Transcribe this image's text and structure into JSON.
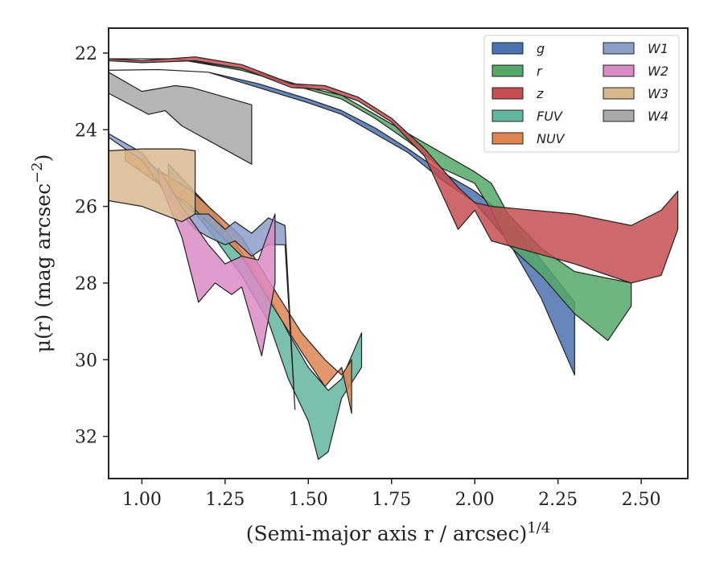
{
  "chart_data": {
    "type": "area",
    "xlabel": "(Semi-major axis r / arcsec)^1/4",
    "ylabel": "μ(r) (mag arcsec^−2)",
    "xlim": [
      0.9,
      2.64
    ],
    "ylim": [
      33.1,
      21.35
    ],
    "y_inverted": true,
    "grid": false,
    "legend_position": "top-right",
    "legend_columns": 2,
    "x_ticks": [
      1.0,
      1.25,
      1.5,
      1.75,
      2.0,
      2.25,
      2.5
    ],
    "x_tick_labels": [
      "1.00",
      "1.25",
      "1.50",
      "1.75",
      "2.00",
      "2.25",
      "2.50"
    ],
    "y_ticks": [
      22,
      24,
      26,
      28,
      30,
      32
    ],
    "y_tick_labels": [
      "22",
      "24",
      "26",
      "28",
      "30",
      "32"
    ],
    "series": [
      {
        "name": "g",
        "color": "#4c72b0",
        "upper": [
          [
            0.9,
            22.45
          ],
          [
            1.05,
            22.43
          ],
          [
            1.2,
            22.5
          ],
          [
            1.35,
            22.8
          ],
          [
            1.5,
            23.2
          ],
          [
            1.6,
            23.5
          ],
          [
            1.7,
            23.95
          ],
          [
            1.8,
            24.5
          ],
          [
            1.9,
            25.1
          ],
          [
            2.0,
            25.6
          ],
          [
            2.1,
            26.3
          ],
          [
            2.2,
            27.4
          ],
          [
            2.3,
            28.5
          ]
        ],
        "lower": [
          [
            0.9,
            22.45
          ],
          [
            1.05,
            22.43
          ],
          [
            1.2,
            22.5
          ],
          [
            1.35,
            22.9
          ],
          [
            1.5,
            23.3
          ],
          [
            1.6,
            23.6
          ],
          [
            1.7,
            24.1
          ],
          [
            1.8,
            24.6
          ],
          [
            1.9,
            25.3
          ],
          [
            2.0,
            25.9
          ],
          [
            2.1,
            26.9
          ],
          [
            2.2,
            28.4
          ],
          [
            2.3,
            30.4
          ]
        ]
      },
      {
        "name": "r",
        "color": "#55a868",
        "upper": [
          [
            0.9,
            22.15
          ],
          [
            1.1,
            22.15
          ],
          [
            1.3,
            22.4
          ],
          [
            1.5,
            22.9
          ],
          [
            1.6,
            23.1
          ],
          [
            1.7,
            23.6
          ],
          [
            1.8,
            24.1
          ],
          [
            1.9,
            24.6
          ],
          [
            2.0,
            25.1
          ],
          [
            2.05,
            25.4
          ],
          [
            2.1,
            26.2
          ],
          [
            2.2,
            27.1
          ],
          [
            2.3,
            27.7
          ],
          [
            2.47,
            28.0
          ]
        ],
        "lower": [
          [
            0.9,
            22.15
          ],
          [
            1.1,
            22.15
          ],
          [
            1.3,
            22.45
          ],
          [
            1.5,
            22.95
          ],
          [
            1.6,
            23.2
          ],
          [
            1.7,
            23.7
          ],
          [
            1.8,
            24.3
          ],
          [
            1.9,
            25.0
          ],
          [
            2.0,
            25.4
          ],
          [
            2.05,
            26.1
          ],
          [
            2.1,
            27.0
          ],
          [
            2.2,
            27.8
          ],
          [
            2.3,
            28.8
          ],
          [
            2.4,
            29.5
          ],
          [
            2.47,
            28.6
          ]
        ]
      },
      {
        "name": "z",
        "color": "#c44e52",
        "upper": [
          [
            0.9,
            22.15
          ],
          [
            1.0,
            22.2
          ],
          [
            1.16,
            22.1
          ],
          [
            1.3,
            22.3
          ],
          [
            1.45,
            22.8
          ],
          [
            1.55,
            22.85
          ],
          [
            1.65,
            23.15
          ],
          [
            1.75,
            23.7
          ],
          [
            1.85,
            24.5
          ],
          [
            1.95,
            25.5
          ],
          [
            2.0,
            25.9
          ],
          [
            2.05,
            26.0
          ],
          [
            2.3,
            26.2
          ],
          [
            2.47,
            26.5
          ],
          [
            2.56,
            26.1
          ],
          [
            2.61,
            25.6
          ]
        ],
        "lower": [
          [
            0.9,
            22.2
          ],
          [
            1.0,
            22.25
          ],
          [
            1.16,
            22.2
          ],
          [
            1.3,
            22.4
          ],
          [
            1.45,
            22.9
          ],
          [
            1.55,
            22.95
          ],
          [
            1.65,
            23.25
          ],
          [
            1.75,
            23.8
          ],
          [
            1.85,
            24.7
          ],
          [
            1.95,
            26.6
          ],
          [
            2.0,
            26.1
          ],
          [
            2.05,
            26.9
          ],
          [
            2.3,
            27.5
          ],
          [
            2.47,
            28.0
          ],
          [
            2.56,
            27.8
          ],
          [
            2.61,
            26.6
          ]
        ]
      },
      {
        "name": "FUV",
        "color": "#64b5a0",
        "upper": [
          [
            1.08,
            24.9
          ],
          [
            1.2,
            26.0
          ],
          [
            1.3,
            27.2
          ],
          [
            1.38,
            28.3
          ],
          [
            1.44,
            29.3
          ],
          [
            1.5,
            30.2
          ],
          [
            1.56,
            30.8
          ],
          [
            1.6,
            30.5
          ],
          [
            1.66,
            29.3
          ]
        ],
        "lower": [
          [
            1.08,
            25.3
          ],
          [
            1.2,
            26.6
          ],
          [
            1.3,
            27.8
          ],
          [
            1.38,
            29.0
          ],
          [
            1.44,
            30.5
          ],
          [
            1.5,
            31.6
          ],
          [
            1.53,
            32.6
          ],
          [
            1.56,
            32.4
          ],
          [
            1.6,
            31.0
          ],
          [
            1.66,
            30.2
          ]
        ]
      },
      {
        "name": "NUV",
        "color": "#dd8452",
        "upper": [
          [
            0.95,
            24.5
          ],
          [
            1.15,
            25.6
          ],
          [
            1.3,
            26.8
          ],
          [
            1.4,
            28.2
          ],
          [
            1.48,
            29.3
          ],
          [
            1.55,
            30.0
          ],
          [
            1.6,
            30.4
          ],
          [
            1.63,
            30.0
          ]
        ],
        "lower": [
          [
            0.95,
            24.8
          ],
          [
            1.15,
            26.0
          ],
          [
            1.3,
            27.3
          ],
          [
            1.4,
            28.7
          ],
          [
            1.48,
            29.8
          ],
          [
            1.55,
            30.7
          ],
          [
            1.6,
            30.2
          ],
          [
            1.63,
            31.4
          ]
        ]
      },
      {
        "name": "W1",
        "color": "#8c9ec8",
        "upper": [
          [
            0.9,
            24.1
          ],
          [
            1.0,
            24.6
          ],
          [
            1.1,
            25.7
          ],
          [
            1.16,
            26.2
          ],
          [
            1.2,
            26.2
          ],
          [
            1.25,
            26.6
          ],
          [
            1.28,
            26.4
          ],
          [
            1.33,
            26.7
          ],
          [
            1.38,
            26.3
          ],
          [
            1.43,
            26.5
          ],
          [
            1.46,
            31.3
          ]
        ],
        "lower": [
          [
            0.9,
            24.2
          ],
          [
            1.0,
            24.8
          ],
          [
            1.1,
            26.0
          ],
          [
            1.16,
            26.6
          ],
          [
            1.2,
            26.8
          ],
          [
            1.25,
            27.0
          ],
          [
            1.28,
            26.9
          ],
          [
            1.33,
            27.3
          ],
          [
            1.38,
            27.0
          ],
          [
            1.43,
            27.0
          ],
          [
            1.46,
            31.3
          ]
        ]
      },
      {
        "name": "W2",
        "color": "#da8bc3",
        "upper": [
          [
            1.05,
            25.0
          ],
          [
            1.12,
            26.0
          ],
          [
            1.2,
            27.0
          ],
          [
            1.25,
            27.5
          ],
          [
            1.3,
            27.3
          ],
          [
            1.35,
            27.4
          ],
          [
            1.4,
            26.2
          ]
        ],
        "lower": [
          [
            1.05,
            25.3
          ],
          [
            1.12,
            26.8
          ],
          [
            1.17,
            28.5
          ],
          [
            1.22,
            28.0
          ],
          [
            1.27,
            28.3
          ],
          [
            1.3,
            28.1
          ],
          [
            1.36,
            29.9
          ],
          [
            1.4,
            28.0
          ]
        ]
      },
      {
        "name": "W3",
        "color": "#d9b78d",
        "upper": [
          [
            0.9,
            24.55
          ],
          [
            1.0,
            24.5
          ],
          [
            1.12,
            24.5
          ],
          [
            1.16,
            24.55
          ]
        ],
        "lower": [
          [
            0.9,
            25.85
          ],
          [
            1.0,
            26.0
          ],
          [
            1.12,
            26.4
          ],
          [
            1.16,
            26.2
          ]
        ]
      },
      {
        "name": "W4",
        "color": "#a8a8a8",
        "upper": [
          [
            0.9,
            22.5
          ],
          [
            1.0,
            23.0
          ],
          [
            1.1,
            22.85
          ],
          [
            1.15,
            22.9
          ],
          [
            1.33,
            23.35
          ]
        ],
        "lower": [
          [
            0.9,
            23.05
          ],
          [
            1.02,
            23.6
          ],
          [
            1.07,
            23.5
          ],
          [
            1.12,
            23.9
          ],
          [
            1.33,
            24.9
          ]
        ]
      }
    ]
  }
}
